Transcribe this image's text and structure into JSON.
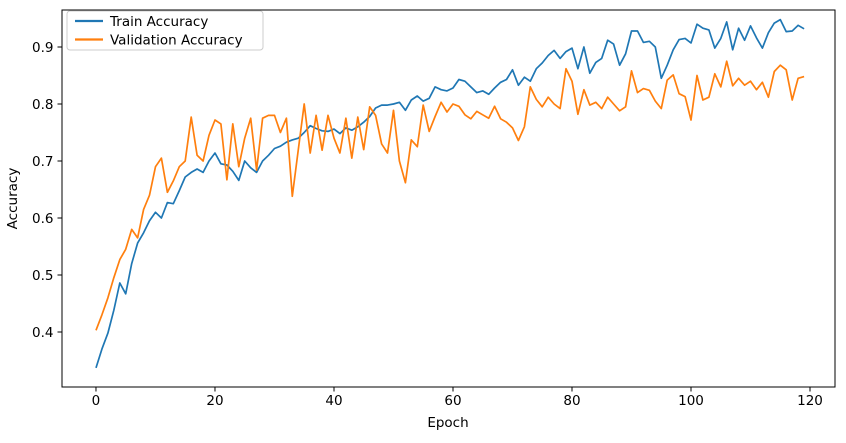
{
  "chart_data": {
    "type": "line",
    "title": "",
    "xlabel": "Epoch",
    "ylabel": "Accuracy",
    "grid": false,
    "legend_position": "upper-left",
    "xticks": [
      "0",
      "20",
      "40",
      "60",
      "80",
      "100",
      "120"
    ],
    "yticks": [
      "0.4",
      "0.5",
      "0.6",
      "0.7",
      "0.8",
      "0.9"
    ],
    "xlim": [
      -5.71,
      124.2
    ],
    "ylim": [
      0.3035,
      0.9649
    ],
    "x_start": 0,
    "x_step": 1,
    "series": [
      {
        "name": "Train Accuracy",
        "color": "#1f77b4",
        "values": [
          0.337,
          0.37,
          0.398,
          0.438,
          0.486,
          0.467,
          0.52,
          0.556,
          0.574,
          0.595,
          0.61,
          0.6,
          0.627,
          0.625,
          0.648,
          0.672,
          0.68,
          0.686,
          0.68,
          0.7,
          0.714,
          0.695,
          0.693,
          0.682,
          0.666,
          0.7,
          0.688,
          0.68,
          0.7,
          0.71,
          0.722,
          0.726,
          0.733,
          0.737,
          0.74,
          0.75,
          0.762,
          0.757,
          0.753,
          0.752,
          0.756,
          0.748,
          0.758,
          0.754,
          0.76,
          0.768,
          0.778,
          0.793,
          0.798,
          0.798,
          0.8,
          0.803,
          0.789,
          0.807,
          0.814,
          0.805,
          0.81,
          0.83,
          0.825,
          0.823,
          0.828,
          0.843,
          0.84,
          0.83,
          0.82,
          0.823,
          0.817,
          0.828,
          0.838,
          0.843,
          0.86,
          0.833,
          0.847,
          0.84,
          0.862,
          0.872,
          0.885,
          0.894,
          0.88,
          0.892,
          0.898,
          0.862,
          0.9,
          0.854,
          0.873,
          0.88,
          0.912,
          0.905,
          0.868,
          0.888,
          0.928,
          0.928,
          0.908,
          0.91,
          0.9,
          0.845,
          0.868,
          0.895,
          0.913,
          0.915,
          0.907,
          0.94,
          0.933,
          0.93,
          0.898,
          0.915,
          0.944,
          0.895,
          0.933,
          0.912,
          0.937,
          0.916,
          0.898,
          0.925,
          0.942,
          0.948,
          0.927,
          0.928,
          0.938,
          0.932
        ]
      },
      {
        "name": "Validation Accuracy",
        "color": "#ff7f0e",
        "values": [
          0.403,
          0.43,
          0.46,
          0.495,
          0.527,
          0.545,
          0.58,
          0.565,
          0.615,
          0.64,
          0.69,
          0.705,
          0.645,
          0.665,
          0.69,
          0.7,
          0.777,
          0.71,
          0.7,
          0.745,
          0.772,
          0.765,
          0.667,
          0.765,
          0.69,
          0.74,
          0.775,
          0.684,
          0.775,
          0.78,
          0.78,
          0.75,
          0.775,
          0.638,
          0.72,
          0.8,
          0.714,
          0.78,
          0.719,
          0.78,
          0.74,
          0.714,
          0.775,
          0.705,
          0.777,
          0.72,
          0.795,
          0.78,
          0.73,
          0.714,
          0.789,
          0.7,
          0.662,
          0.737,
          0.725,
          0.798,
          0.752,
          0.778,
          0.803,
          0.786,
          0.8,
          0.796,
          0.781,
          0.774,
          0.787,
          0.781,
          0.775,
          0.796,
          0.774,
          0.768,
          0.758,
          0.736,
          0.76,
          0.83,
          0.808,
          0.795,
          0.812,
          0.8,
          0.792,
          0.862,
          0.84,
          0.782,
          0.825,
          0.798,
          0.803,
          0.792,
          0.812,
          0.8,
          0.788,
          0.795,
          0.858,
          0.82,
          0.827,
          0.824,
          0.805,
          0.792,
          0.842,
          0.851,
          0.818,
          0.813,
          0.772,
          0.85,
          0.807,
          0.812,
          0.853,
          0.83,
          0.875,
          0.832,
          0.845,
          0.833,
          0.84,
          0.825,
          0.838,
          0.812,
          0.857,
          0.868,
          0.86,
          0.807,
          0.845,
          0.848
        ]
      }
    ]
  },
  "colors": {
    "axis": "#000000",
    "legend_border": "#cccccc",
    "background": "#ffffff"
  }
}
